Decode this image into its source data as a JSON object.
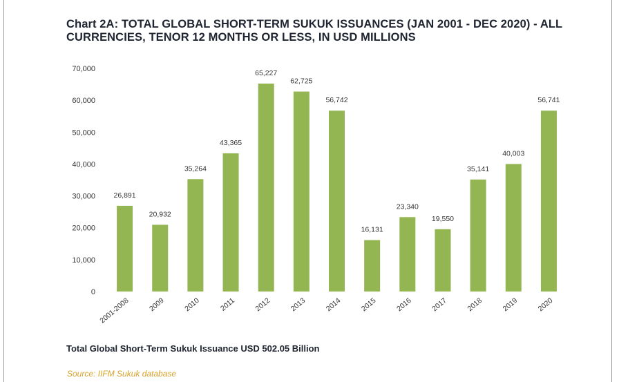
{
  "title": "Chart 2A: TOTAL GLOBAL SHORT-TERM SUKUK ISSUANCES (JAN 2001 - DEC 2020) - ALL CURRENCIES, TENOR 12 MONTHS OR LESS, IN USD MILLIONS",
  "footer": {
    "total": "Total Global Short-Term Sukuk Issuance USD 502.05 Billion",
    "source": "Source: IIFM Sukuk database"
  },
  "colors": {
    "bar": "#93b552",
    "axis_text": "#333333",
    "source": "#d6a22a"
  },
  "chart_data": {
    "type": "bar",
    "title": "Chart 2A: TOTAL GLOBAL SHORT-TERM SUKUK ISSUANCES (JAN 2001 - DEC 2020) - ALL CURRENCIES, TENOR 12 MONTHS OR LESS, IN USD MILLIONS",
    "categories": [
      "2001-2008",
      "2009",
      "2010",
      "2011",
      "2012",
      "2013",
      "2014",
      "2015",
      "2016",
      "2017",
      "2018",
      "2019",
      "2020"
    ],
    "values": [
      26891,
      20932,
      35264,
      43365,
      65227,
      62725,
      56742,
      16131,
      23340,
      19550,
      35141,
      40003,
      56741
    ],
    "data_labels": [
      "26,891",
      "20,932",
      "35,264",
      "43,365",
      "65,227",
      "62,725",
      "56,742",
      "16,131",
      "23,340",
      "19,550",
      "35,141",
      "40,003",
      "56,741"
    ],
    "yticks": [
      "0",
      "10,000",
      "20,000",
      "30,000",
      "40,000",
      "50,000",
      "60,000",
      "70,000"
    ],
    "ylim": [
      0,
      70000
    ],
    "grid": false,
    "legend": "none"
  }
}
